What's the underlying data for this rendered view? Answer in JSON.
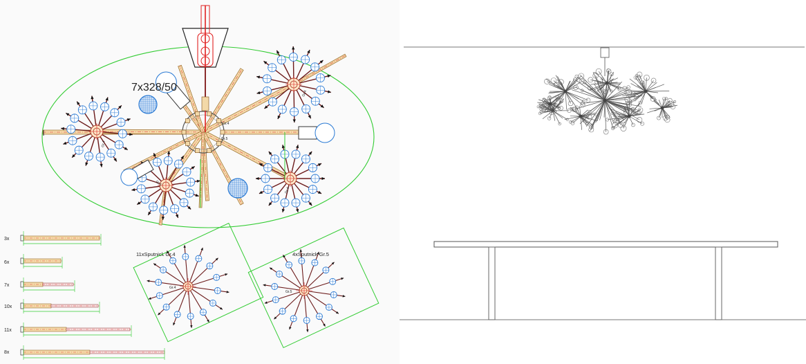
{
  "plan": {
    "rod_callout": "7x328/50",
    "group_labels": {
      "hub1": "Gr.4",
      "hub2": "Gr.5",
      "hub3": "Gr.4",
      "hub4": "Gr.4",
      "center_a": "Gr.4",
      "center_b": "Gr.5"
    }
  },
  "legend": {
    "rows": [
      {
        "qty": "3x"
      },
      {
        "qty": "6x"
      },
      {
        "qty": "7x"
      },
      {
        "qty": "10x"
      },
      {
        "qty": "11x"
      },
      {
        "qty": "8x"
      }
    ]
  },
  "details": {
    "detail_a": {
      "title": "11xSputnick  Gr.4",
      "hub_label": "Gr.4"
    },
    "detail_b": {
      "title": "4xSputnick  Gr.5",
      "hub_label": "Gr.5"
    }
  },
  "colors": {
    "outline": "#33cc33",
    "rod_fill": "#f3d9a8",
    "rod_edge": "#9a6b2a",
    "spoke": "#6b1a1a",
    "bulb": "#2a7ad4",
    "axis": "#e02020",
    "sketch": "#555555"
  }
}
